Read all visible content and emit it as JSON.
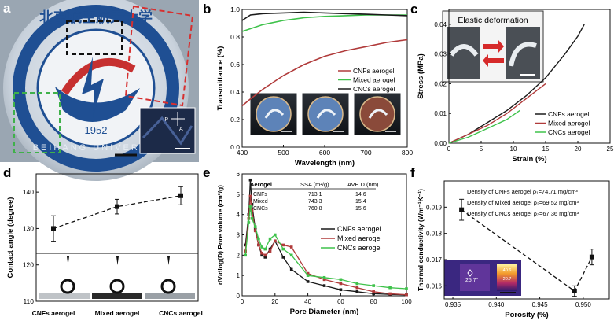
{
  "panels": {
    "a": {
      "letter": "a",
      "seal_text_top": "北京航空航天大学",
      "seal_text_bottom": "BEIHANG UNIVERSITY",
      "seal_year": "1952",
      "inset_labels": {
        "p": "P",
        "a": "A"
      }
    },
    "b": {
      "letter": "b"
    },
    "c": {
      "letter": "c",
      "inset_title": "Elastic deformation"
    },
    "d": {
      "letter": "d"
    },
    "e": {
      "letter": "e",
      "table": {
        "headers": [
          "Aerogel",
          "SSA (m²/g)",
          "AVE D (nm)"
        ],
        "rows": [
          [
            "CNFs",
            "713.1",
            "14.6"
          ],
          [
            "Mixed",
            "743.3",
            "15.4"
          ],
          [
            "CNCs",
            "760.8",
            "15.6"
          ]
        ]
      }
    },
    "f": {
      "letter": "f",
      "annotations": [
        "Density of CNFs aerogel ρ₁=74.71 mg/cm³",
        "Density of Mixed aerogel ρ₂=69.52 mg/cm³",
        "Density of CNCs aerogel ρ₃=67.36 mg/cm³"
      ],
      "ir_label": "25.7°",
      "ir_scale": [
        "40.6",
        "20.7"
      ]
    }
  },
  "chart_data": [
    {
      "id": "b",
      "type": "line",
      "xlabel": "Wavelength (nm)",
      "ylabel": "Transmittance (%)",
      "xlim": [
        400,
        800
      ],
      "ylim": [
        0,
        1.0
      ],
      "xticks": [
        "400",
        "500",
        "600",
        "700",
        "800"
      ],
      "yticks": [
        "0.0",
        "0.2",
        "0.4",
        "0.6",
        "0.8",
        "1.0"
      ],
      "legend_position": "right",
      "series": [
        {
          "name": "CNFs aerogel",
          "color": "#b03a3a",
          "x": [
            400,
            420,
            450,
            500,
            550,
            600,
            650,
            700,
            750,
            800
          ],
          "y": [
            0.3,
            0.35,
            0.42,
            0.52,
            0.6,
            0.66,
            0.7,
            0.73,
            0.76,
            0.78
          ]
        },
        {
          "name": "Mixed aerogel",
          "color": "#3fc24b",
          "x": [
            400,
            420,
            450,
            500,
            550,
            600,
            650,
            700,
            750,
            800
          ],
          "y": [
            0.84,
            0.86,
            0.89,
            0.92,
            0.94,
            0.95,
            0.955,
            0.96,
            0.96,
            0.96
          ]
        },
        {
          "name": "CNCs aerogel",
          "color": "#1a1a1a",
          "x": [
            400,
            420,
            450,
            500,
            550,
            600,
            650,
            700,
            750,
            800
          ],
          "y": [
            0.92,
            0.96,
            0.97,
            0.975,
            0.98,
            0.975,
            0.97,
            0.965,
            0.96,
            0.955
          ]
        }
      ]
    },
    {
      "id": "c",
      "type": "line",
      "xlabel": "Strain (%)",
      "ylabel": "Stress (MPa)",
      "xlim": [
        0,
        25
      ],
      "ylim": [
        0,
        0.045
      ],
      "xticks": [
        "0",
        "5",
        "10",
        "15",
        "20",
        "25"
      ],
      "yticks": [
        "0.00",
        "0.01",
        "0.02",
        "0.03",
        "0.04"
      ],
      "legend_position": "bottom-right",
      "series": [
        {
          "name": "CNFs aerogel",
          "color": "#1a1a1a",
          "x": [
            0,
            3,
            6,
            9,
            12,
            15,
            18,
            20,
            21
          ],
          "y": [
            0,
            0.003,
            0.007,
            0.011,
            0.016,
            0.022,
            0.03,
            0.036,
            0.04
          ]
        },
        {
          "name": "Mixed aerogel",
          "color": "#b03a3a",
          "x": [
            0,
            3,
            6,
            9,
            12,
            15
          ],
          "y": [
            0,
            0.003,
            0.006,
            0.01,
            0.015,
            0.02
          ]
        },
        {
          "name": "CNCs aerogel",
          "color": "#3fc24b",
          "x": [
            0,
            3,
            6,
            9,
            11
          ],
          "y": [
            0,
            0.002,
            0.005,
            0.008,
            0.011
          ]
        }
      ]
    },
    {
      "id": "d",
      "type": "scatter",
      "ylabel": "Contact angle (degree)",
      "categories": [
        "CNFs aerogel",
        "Mixed aerogel",
        "CNCs aerogel"
      ],
      "values": [
        130,
        136,
        139
      ],
      "errors": [
        3.5,
        2.0,
        2.5
      ],
      "ylim": [
        110,
        145
      ],
      "yticks": [
        "110",
        "120",
        "130",
        "140"
      ]
    },
    {
      "id": "e",
      "type": "line",
      "xlabel": "Pore Diameter (nm)",
      "ylabel": "dV/dlog(D) Pore volume (cm³/g)",
      "xlim": [
        0,
        100
      ],
      "ylim": [
        0,
        6
      ],
      "xticks": [
        "0",
        "20",
        "40",
        "60",
        "80",
        "100"
      ],
      "yticks": [
        "0",
        "1",
        "2",
        "3",
        "4",
        "5",
        "6"
      ],
      "legend_position": "right",
      "series": [
        {
          "name": "CNFs aerogel",
          "color": "#1a1a1a",
          "x": [
            2,
            4,
            5,
            6,
            8,
            10,
            12,
            14,
            17,
            20,
            25,
            30,
            40,
            50,
            60,
            70,
            80,
            90,
            100
          ],
          "y": [
            2.5,
            4.0,
            5.7,
            4.5,
            3.3,
            2.5,
            2.0,
            1.9,
            2.3,
            2.7,
            1.9,
            1.3,
            0.7,
            0.5,
            0.3,
            0.2,
            0.1,
            0.07,
            0.05
          ]
        },
        {
          "name": "Mixed aerogel",
          "color": "#b03a3a",
          "x": [
            2,
            4,
            5,
            6,
            8,
            10,
            12,
            14,
            17,
            20,
            25,
            30,
            40,
            50,
            60,
            70,
            80,
            90,
            100
          ],
          "y": [
            2.2,
            3.8,
            4.9,
            4.2,
            3.2,
            2.5,
            2.1,
            2.0,
            2.2,
            2.7,
            2.5,
            2.4,
            1.1,
            0.8,
            0.6,
            0.4,
            0.2,
            0.1,
            0.05
          ]
        },
        {
          "name": "CNCs aerogel",
          "color": "#3fc24b",
          "x": [
            2,
            4,
            5,
            6,
            8,
            10,
            12,
            14,
            17,
            20,
            25,
            30,
            40,
            50,
            60,
            70,
            80,
            90,
            100
          ],
          "y": [
            2.0,
            3.6,
            4.4,
            3.8,
            3.4,
            2.8,
            2.4,
            2.3,
            2.8,
            3.0,
            2.3,
            2.0,
            1.0,
            0.9,
            0.8,
            0.6,
            0.5,
            0.4,
            0.35
          ]
        }
      ]
    },
    {
      "id": "f",
      "type": "scatter",
      "xlabel": "Porosity (%)",
      "ylabel": "Thermal conductivity (Wm⁻¹K⁻¹)",
      "x": [
        0.936,
        0.949,
        0.951
      ],
      "y": [
        0.0189,
        0.0158,
        0.0171
      ],
      "errors": [
        0.0004,
        0.0002,
        0.0003
      ],
      "xlim": [
        0.934,
        0.953
      ],
      "ylim": [
        0.0155,
        0.02
      ],
      "xticks": [
        "0.935",
        "0.940",
        "0.945",
        "0.950"
      ],
      "yticks": [
        "0.016",
        "0.017",
        "0.018",
        "0.019"
      ]
    }
  ]
}
